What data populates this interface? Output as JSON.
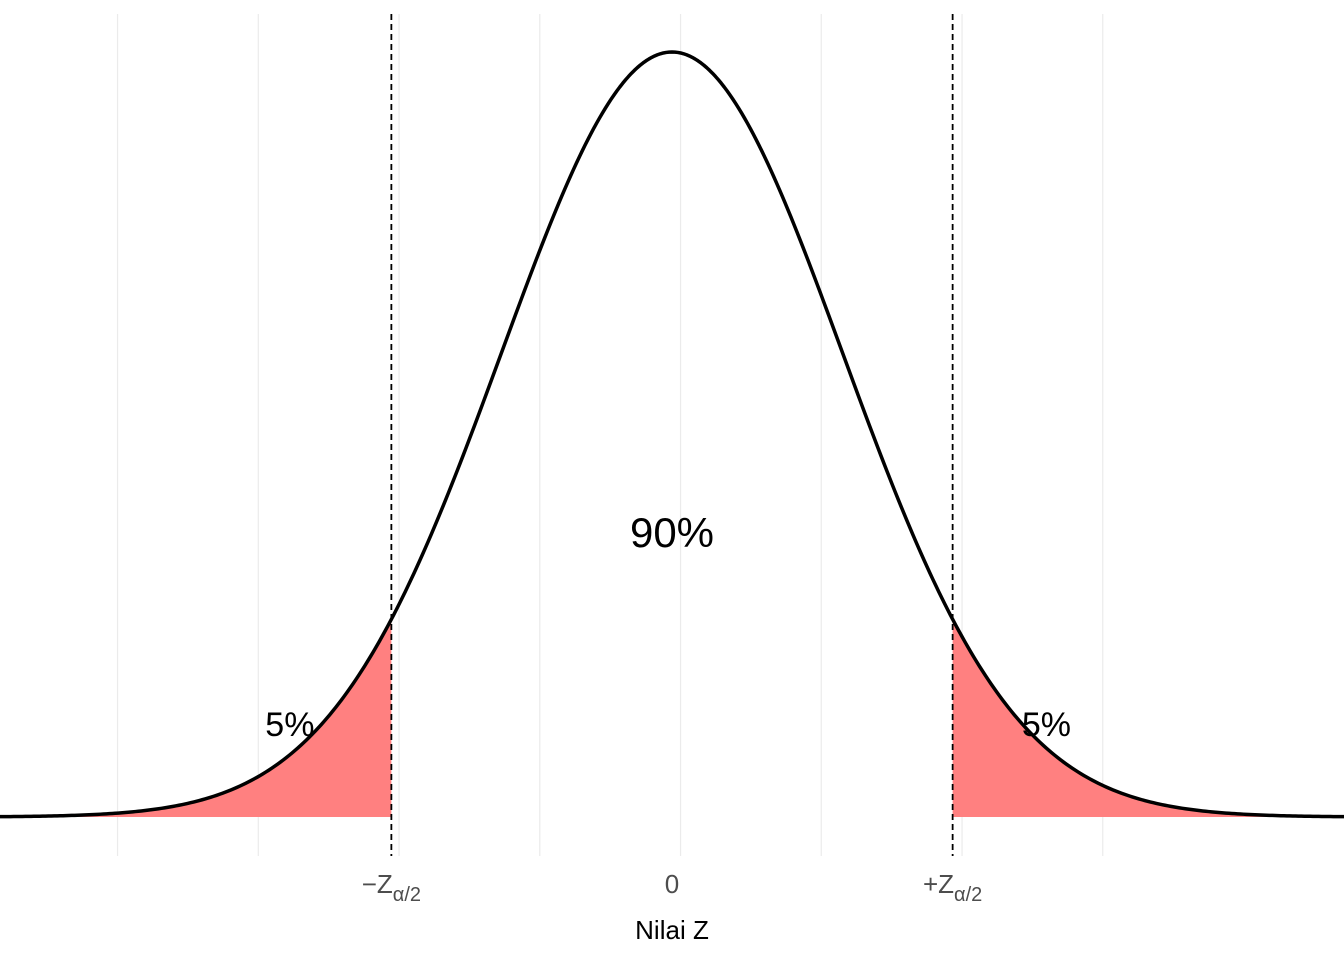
{
  "chart_data": {
    "type": "area",
    "distribution": "standard normal",
    "xlabel": "Nilai Z",
    "ylabel": "",
    "xlim": [
      -4.25,
      4.25
    ],
    "critical_z": 1.645,
    "x_ticks": [
      {
        "value": -1.645,
        "prefix": "−Z",
        "subscript": "α/2"
      },
      {
        "value": 0,
        "prefix": "0",
        "subscript": ""
      },
      {
        "value": 1.645,
        "prefix": "+Z",
        "subscript": "α/2"
      }
    ],
    "regions": [
      {
        "name": "left-tail",
        "from": -4.25,
        "to": -1.645,
        "percent_label": "5%",
        "fill": "#ff8080"
      },
      {
        "name": "center",
        "from": -1.645,
        "to": 1.645,
        "percent_label": "90%",
        "fill": "none"
      },
      {
        "name": "right-tail",
        "from": 1.645,
        "to": 4.25,
        "percent_label": "5%",
        "fill": "#ff8080"
      }
    ],
    "grid": true,
    "legend": "none",
    "colors": {
      "tail_fill": "#ff8080",
      "curve": "#000000",
      "grid": "#ebebeb"
    }
  }
}
